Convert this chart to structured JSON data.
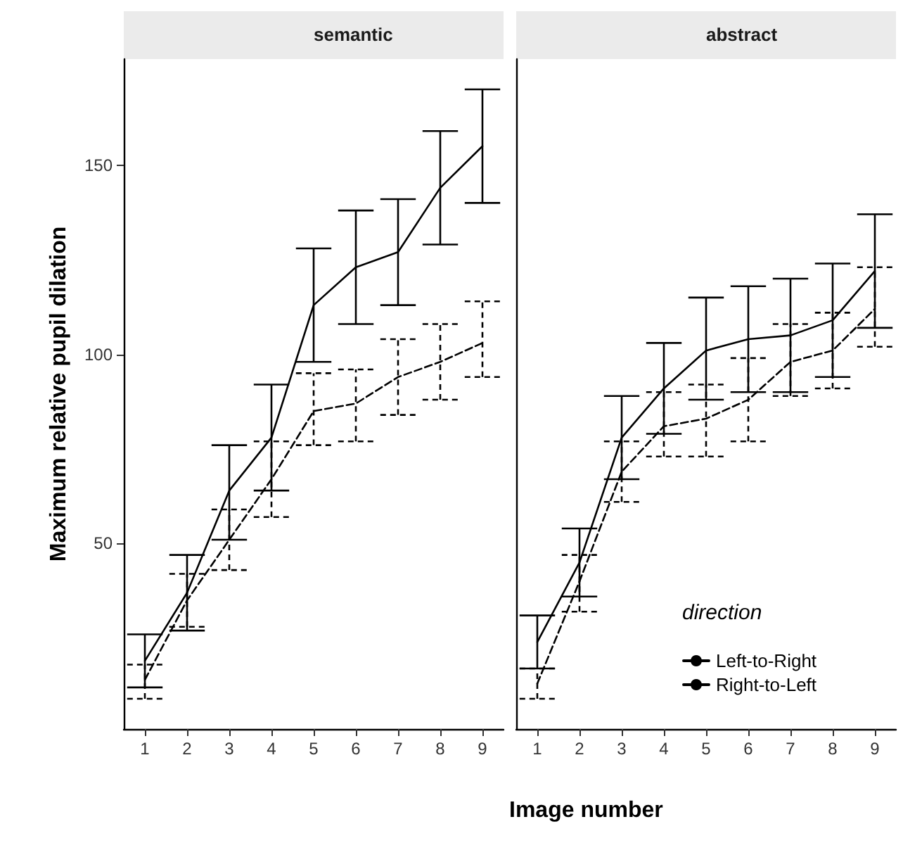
{
  "chart_data": [
    {
      "type": "line",
      "title": "semantic",
      "ylabel": "Maximum relative pupil dilation",
      "xlabel": "Image number",
      "categories": [
        "1",
        "2",
        "3",
        "4",
        "5",
        "6",
        "7",
        "8",
        "9"
      ],
      "ylim": [
        1,
        178
      ],
      "yticks": [
        50,
        100,
        150
      ],
      "series": [
        {
          "color": "#000000",
          "line_style": "solid",
          "values": [
            19,
            37,
            64,
            78,
            113,
            123,
            127,
            144,
            155
          ],
          "errors": [
            [
              12,
              26
            ],
            [
              27,
              47
            ],
            [
              51,
              76
            ],
            [
              64,
              92
            ],
            [
              98,
              128
            ],
            [
              108,
              138
            ],
            [
              113,
              141
            ],
            [
              129,
              159
            ],
            [
              140,
              170
            ]
          ]
        },
        {
          "color": "#000000",
          "line_style": "dashed",
          "values": [
            14,
            35,
            51,
            67,
            85,
            87,
            94,
            98,
            103
          ],
          "errors": [
            [
              9,
              18
            ],
            [
              28,
              42
            ],
            [
              43,
              59
            ],
            [
              57,
              77
            ],
            [
              76,
              95
            ],
            [
              77,
              96
            ],
            [
              84,
              104
            ],
            [
              88,
              108
            ],
            [
              94,
              114
            ]
          ]
        }
      ]
    },
    {
      "type": "line",
      "title": "abstract",
      "categories": [
        "1",
        "2",
        "3",
        "4",
        "5",
        "6",
        "7",
        "8",
        "9"
      ],
      "ylim": [
        1,
        178
      ],
      "yticks": [
        50,
        100,
        150
      ],
      "tick_labels": "x",
      "legend": "bottom right",
      "legend_title": "direction",
      "series": [
        {
          "name": "Left-to-Right",
          "color": "#000000",
          "line_style": "solid",
          "values": [
            24,
            45,
            78,
            91,
            101,
            104,
            105,
            109,
            122
          ],
          "errors": [
            [
              17,
              31
            ],
            [
              36,
              54
            ],
            [
              67,
              89
            ],
            [
              79,
              103
            ],
            [
              88,
              115
            ],
            [
              90,
              118
            ],
            [
              90,
              120
            ],
            [
              94,
              124
            ],
            [
              107,
              137
            ]
          ]
        },
        {
          "name": "Right-to-Left",
          "color": "#000000",
          "line_style": "dashed",
          "values": [
            13,
            40,
            69,
            81,
            83,
            88,
            98,
            101,
            112
          ],
          "errors": [
            [
              9,
              17
            ],
            [
              32,
              47
            ],
            [
              61,
              77
            ],
            [
              73,
              90
            ],
            [
              73,
              92
            ],
            [
              77,
              99
            ],
            [
              89,
              108
            ],
            [
              91,
              111
            ],
            [
              102,
              123
            ]
          ]
        }
      ]
    }
  ]
}
